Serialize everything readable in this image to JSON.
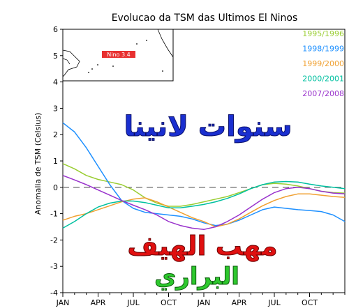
{
  "chart_data": {
    "type": "line",
    "title": "Evolucao da TSM das Ultimos El Ninos",
    "ylabel": "Anomalia de TSM (Celsius)",
    "xlabel": "",
    "ylim": [
      -4,
      6
    ],
    "yticks": [
      6,
      5,
      4,
      3,
      2,
      1,
      0,
      -1,
      -2,
      -3,
      -4
    ],
    "xtick_labels": [
      "JAN",
      "APR",
      "JUL",
      "OCT",
      "JAN",
      "APR",
      "JUL",
      "OCT"
    ],
    "x": [
      0,
      1,
      2,
      3,
      4,
      5,
      6,
      7,
      8,
      9,
      10,
      11,
      12,
      13,
      14,
      15,
      16,
      17,
      18,
      19,
      20,
      21,
      22,
      23,
      24
    ],
    "reference_line": {
      "y": 0,
      "style": "dashed",
      "color": "#777777"
    },
    "series": [
      {
        "name": "1995/1996",
        "color": "#9acd32",
        "values": [
          0.9,
          0.7,
          0.45,
          0.3,
          0.2,
          0.1,
          -0.1,
          -0.4,
          -0.6,
          -0.72,
          -0.72,
          -0.65,
          -0.55,
          -0.45,
          -0.35,
          -0.2,
          -0.05,
          0.1,
          0.15,
          0.12,
          0.05,
          -0.05,
          -0.15,
          -0.2,
          -0.22
        ]
      },
      {
        "name": "1998/1999",
        "color": "#1e90ff",
        "values": [
          2.45,
          2.1,
          1.5,
          0.8,
          0.1,
          -0.5,
          -0.8,
          -0.95,
          -1.0,
          -1.05,
          -1.1,
          -1.2,
          -1.35,
          -1.45,
          -1.4,
          -1.25,
          -1.05,
          -0.85,
          -0.75,
          -0.8,
          -0.85,
          -0.88,
          -0.92,
          -1.05,
          -1.3
        ]
      },
      {
        "name": "1999/2000",
        "color": "#f0a030",
        "values": [
          -1.25,
          -1.1,
          -1.0,
          -0.85,
          -0.7,
          -0.55,
          -0.45,
          -0.4,
          -0.55,
          -0.75,
          -0.95,
          -1.15,
          -1.3,
          -1.5,
          -1.4,
          -1.2,
          -0.95,
          -0.7,
          -0.5,
          -0.35,
          -0.25,
          -0.25,
          -0.3,
          -0.35,
          -0.38
        ]
      },
      {
        "name": "2000/2001",
        "color": "#00c0a0",
        "values": [
          -1.55,
          -1.3,
          -1.0,
          -0.75,
          -0.6,
          -0.52,
          -0.52,
          -0.58,
          -0.68,
          -0.78,
          -0.78,
          -0.72,
          -0.65,
          -0.55,
          -0.42,
          -0.25,
          -0.05,
          0.1,
          0.2,
          0.22,
          0.2,
          0.12,
          0.05,
          0.0,
          -0.05
        ]
      },
      {
        "name": "2007/2008",
        "color": "#9932cc",
        "values": [
          0.45,
          0.28,
          0.1,
          -0.1,
          -0.3,
          -0.5,
          -0.68,
          -0.85,
          -1.05,
          -1.3,
          -1.45,
          -1.55,
          -1.6,
          -1.5,
          -1.3,
          -1.05,
          -0.75,
          -0.45,
          -0.2,
          -0.05,
          0.0,
          -0.05,
          -0.15,
          -0.22,
          -0.25
        ]
      }
    ],
    "legend_position": "top-right",
    "grid": false,
    "inset_map": {
      "label": "Nino 3.4",
      "label_bg": "#e83030"
    },
    "overlay_texts": [
      {
        "text": "سنوات لانينا",
        "color": "#1a2fd0"
      },
      {
        "text": "مهب الهيف",
        "color": "#e01010"
      },
      {
        "text": "البراري",
        "color": "#2ec82e"
      }
    ]
  }
}
